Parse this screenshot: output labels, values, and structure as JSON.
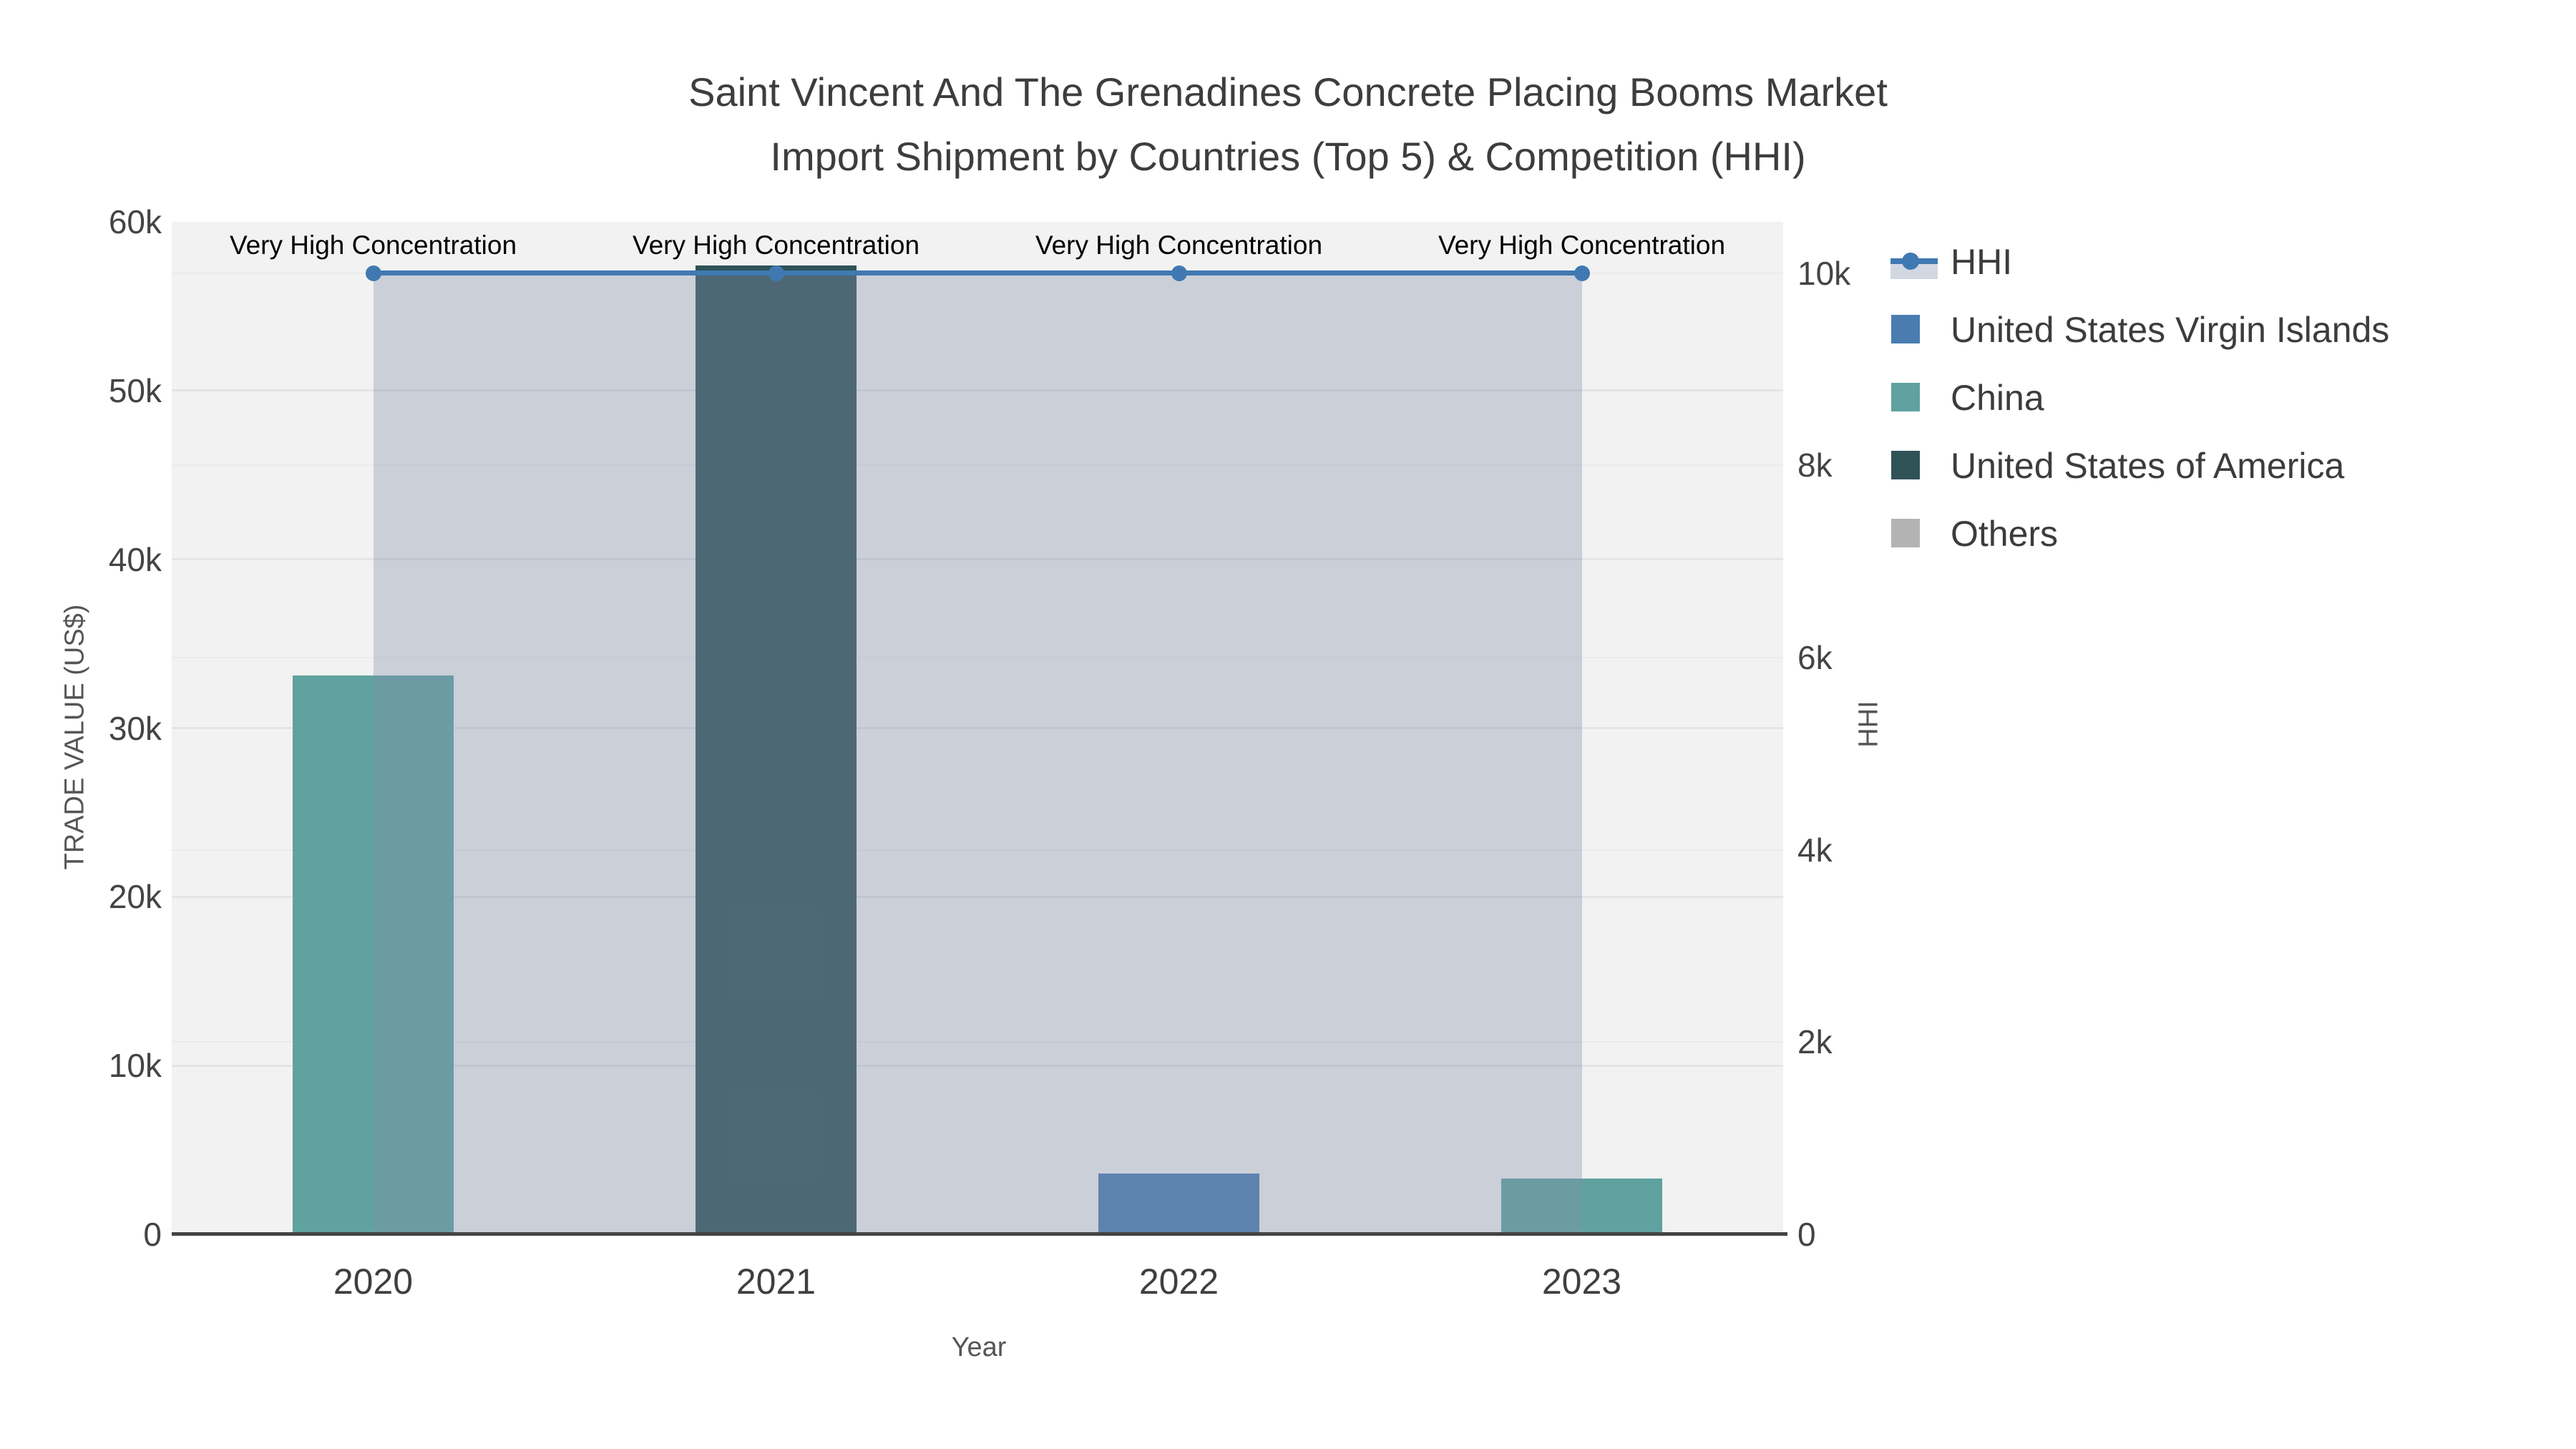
{
  "title": {
    "line1": "Saint Vincent And The Grenadines Concrete Placing Booms Market",
    "line2": "Import Shipment by Countries (Top 5) & Competition (HHI)"
  },
  "annotations": [
    "Very High Concentration",
    "Very High Concentration",
    "Very High Concentration",
    "Very High Concentration"
  ],
  "legend": {
    "items": [
      {
        "label": "HHI",
        "type": "line",
        "color": "#4079B1",
        "band_color": "#D2D8E1"
      },
      {
        "label": "United States Virgin Islands",
        "type": "square",
        "color": "#4A7CB2"
      },
      {
        "label": "China",
        "type": "square",
        "color": "#5FA2A0"
      },
      {
        "label": "United States of America",
        "type": "square",
        "color": "#2F5257"
      },
      {
        "label": "Others",
        "type": "square",
        "color": "#B3B3B3"
      }
    ]
  },
  "colors": {
    "plot_bg": "#F2F2F2",
    "grid_left": "#E3E4E6",
    "grid_right": "#EBEBED",
    "axis_line": "#444444",
    "hhi_fill": "rgba(130,145,170,0.36)"
  },
  "chart_data": {
    "type": "bar+line",
    "title": "Saint Vincent And The Grenadines Concrete Placing Booms Market Import Shipment by Countries (Top 5) & Competition (HHI)",
    "categories": [
      "2020",
      "2021",
      "2022",
      "2023"
    ],
    "x_label": "Year",
    "grid": true,
    "legend_position": "right",
    "y_left": {
      "label": "TRADE VALUE (US$)",
      "range": [
        0,
        60000
      ],
      "tick_values": [
        0,
        10000,
        20000,
        30000,
        40000,
        50000,
        60000
      ],
      "tick_labels": [
        "0",
        "10k",
        "20k",
        "30k",
        "40k",
        "50k",
        "60k"
      ]
    },
    "y_right": {
      "label": "HHI",
      "range": [
        0,
        10534
      ],
      "tick_values": [
        0,
        2000,
        4000,
        6000,
        8000,
        10000
      ],
      "tick_labels": [
        "0",
        "2k",
        "4k",
        "6k",
        "8k",
        "10k"
      ]
    },
    "series": [
      {
        "name": "United States Virgin Islands",
        "type": "bar",
        "axis": "left",
        "color": "#4A7CB2",
        "values": [
          0,
          0,
          3600,
          0
        ]
      },
      {
        "name": "China",
        "type": "bar",
        "axis": "left",
        "color": "#5FA2A0",
        "values": [
          33100,
          0,
          0,
          3300
        ]
      },
      {
        "name": "United States of America",
        "type": "bar",
        "axis": "left",
        "color": "#2F5257",
        "values": [
          0,
          57400,
          0,
          0
        ]
      },
      {
        "name": "Others",
        "type": "bar",
        "axis": "left",
        "color": "#B3B3B3",
        "values": [
          0,
          0,
          0,
          0
        ]
      },
      {
        "name": "HHI",
        "type": "line",
        "axis": "right",
        "color": "#4079B1",
        "fill_color": "rgba(130,145,170,0.36)",
        "values": [
          10000,
          10000,
          10000,
          10000
        ],
        "annotation_per_point": "Very High Concentration"
      }
    ]
  }
}
